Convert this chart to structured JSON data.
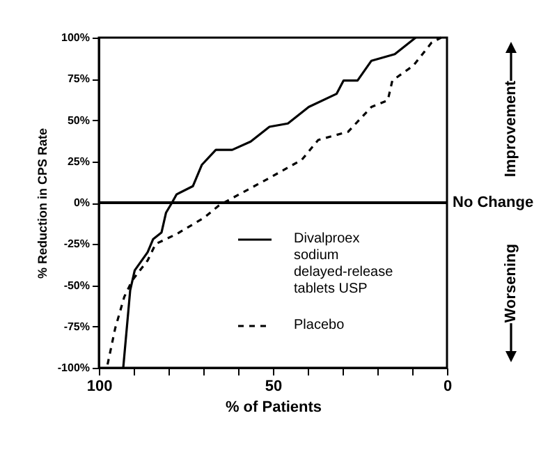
{
  "chart_data": {
    "type": "line",
    "xlabel": "% of Patients",
    "ylabel": "% Reduction in CPS Rate",
    "xlim": [
      100,
      0
    ],
    "ylim": [
      -100,
      100
    ],
    "xticks": [
      100,
      {
        "value": 90,
        "label": null
      },
      {
        "value": 80,
        "label": null
      },
      {
        "value": 70,
        "label": null
      },
      {
        "value": 60,
        "label": null
      },
      50,
      {
        "value": 40,
        "label": null
      },
      {
        "value": 30,
        "label": null
      },
      {
        "value": 20,
        "label": null
      },
      {
        "value": 10,
        "label": null
      },
      0
    ],
    "yticks": [
      {
        "value": -100,
        "label": "-100%"
      },
      {
        "value": -75,
        "label": "-75%"
      },
      {
        "value": -50,
        "label": "-50%"
      },
      {
        "value": -25,
        "label": "-25%"
      },
      {
        "value": 0,
        "label": "0%"
      },
      {
        "value": 25,
        "label": "25%"
      },
      {
        "value": 50,
        "label": "50%"
      },
      {
        "value": 75,
        "label": "75%"
      },
      {
        "value": 100,
        "label": "100%"
      }
    ],
    "grid": false,
    "legend": "bottom right",
    "marker": "none",
    "ref_lines": [
      {
        "axis": "y",
        "value": 0,
        "label": "No Change",
        "color": "#000000"
      }
    ],
    "annotations": [
      "Improvement",
      "Worsening"
    ],
    "series": [
      {
        "name": "Divalproex sodium delayed-release tablets USP",
        "color": "#000000",
        "line_style": "solid",
        "x": [
          93,
          91,
          89.7,
          86,
          84.4,
          82,
          80.7,
          79,
          77.7,
          73,
          70.4,
          66.4,
          61.7,
          56.4,
          51,
          45.7,
          39.7,
          31.7,
          29.7,
          25.7,
          21.7,
          15,
          9
        ],
        "values": [
          -100,
          -53,
          -41,
          -30,
          -22,
          -18,
          -6,
          0,
          5,
          10,
          23,
          32,
          32,
          37,
          46,
          48,
          58,
          66,
          74,
          74,
          86,
          90,
          100
        ]
      },
      {
        "name": "Placebo",
        "color": "#000000",
        "line_style": "dashed",
        "x": [
          97.5,
          95.3,
          92.7,
          90.4,
          86,
          83.7,
          77.7,
          69.7,
          65.7,
          64.1,
          51,
          41.7,
          37,
          28.4,
          21.7,
          17,
          15.7,
          9.7,
          4.4,
          1.7
        ],
        "values": [
          -98,
          -76,
          -57,
          -47,
          -35,
          -25,
          -19,
          -9,
          -2,
          0,
          15,
          26,
          38,
          43,
          58,
          62,
          74,
          83,
          97,
          100
        ]
      }
    ]
  }
}
